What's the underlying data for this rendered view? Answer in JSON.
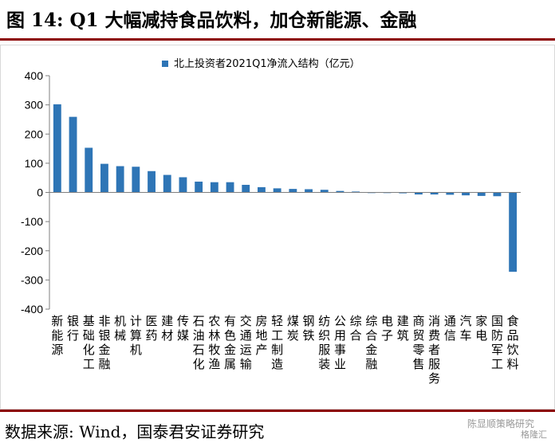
{
  "figure_title": "图 14:  Q1 大幅减持食品饮料，加仓新能源、金融",
  "source": "数据来源:  Wind，国泰君安证券研究",
  "watermark": {
    "text_1": "陈显顺策略研究",
    "text_2": "格隆汇"
  },
  "chart_data": {
    "type": "bar",
    "title": "",
    "xlabel": "",
    "ylabel": "",
    "ylim": [
      -400,
      400
    ],
    "yticks": [
      400,
      300,
      200,
      100,
      0,
      -100,
      -200,
      -300,
      -400
    ],
    "grid": false,
    "legend_position": "top-center",
    "categories": [
      "新能源",
      "银行",
      "基础化工",
      "非银金融",
      "机械",
      "计算机",
      "医药",
      "建材",
      "传媒",
      "石油石化",
      "农林牧渔",
      "有色金属",
      "交通运输",
      "房地产",
      "轻工制造",
      "煤炭",
      "钢铁",
      "纺织服装",
      "公用事业",
      "综合",
      "综合金融",
      "电子",
      "建筑",
      "商贸零售",
      "消费者服务",
      "通信",
      "汽车",
      "家电",
      "国防军工",
      "食品饮料"
    ],
    "series": [
      {
        "name": "北上投资者2021Q1净流入结构（亿元）",
        "color": "#2e75b6",
        "values": [
          302,
          259,
          153,
          98,
          90,
          88,
          73,
          60,
          52,
          37,
          35,
          35,
          26,
          18,
          14,
          12,
          11,
          9,
          5,
          3,
          -1,
          -1,
          -3,
          -7,
          -7,
          -8,
          -10,
          -12,
          -13,
          -272
        ]
      }
    ]
  }
}
